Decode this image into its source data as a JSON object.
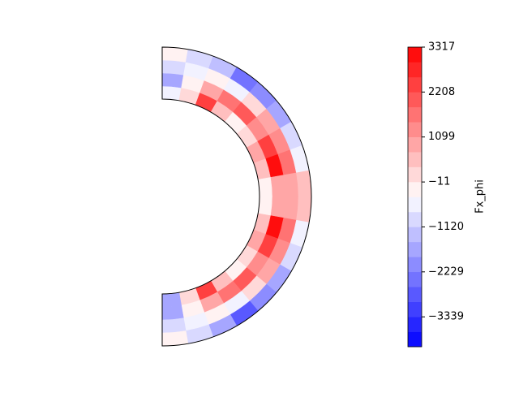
{
  "chart_data": {
    "type": "meridional-contour",
    "colorbar_label": "Fx_phi",
    "clim": [
      -4076,
      3317
    ],
    "levels": 20,
    "colormap": "bwr",
    "colorbar_ticks": [
      {
        "value": -3339,
        "label": "−3339"
      },
      {
        "value": -2229,
        "label": "−2229"
      },
      {
        "value": -1120,
        "label": "−1120"
      },
      {
        "value": -11,
        "label": "−11"
      },
      1099,
      2208,
      3317
    ],
    "values": [
      [
        -500,
        -1500,
        -800,
        -300
      ],
      [
        200,
        -300,
        -600,
        -1000
      ],
      [
        2500,
        800,
        -300,
        -1200
      ],
      [
        500,
        1500,
        -500,
        -2500
      ],
      [
        -300,
        2000,
        300,
        -2000
      ],
      [
        300,
        1200,
        800,
        -1500
      ],
      [
        800,
        2500,
        1200,
        -800
      ],
      [
        500,
        3000,
        1500,
        -500
      ],
      [
        -300,
        800,
        1000,
        400
      ],
      [
        -300,
        800,
        1000,
        400
      ],
      [
        500,
        3000,
        1500,
        -500
      ],
      [
        800,
        2500,
        1200,
        -800
      ],
      [
        300,
        1200,
        800,
        -1500
      ],
      [
        -300,
        2000,
        300,
        -2000
      ],
      [
        500,
        1500,
        -500,
        -2800
      ],
      [
        2500,
        800,
        -300,
        -1500
      ],
      [
        200,
        -300,
        -600,
        -1000
      ],
      [
        -1500,
        -1500,
        -800,
        -300
      ]
    ]
  }
}
